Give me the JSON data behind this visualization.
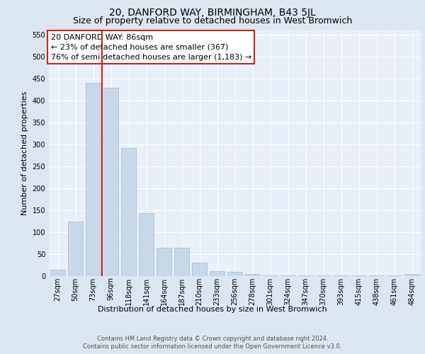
{
  "title_line1": "20, DANFORD WAY, BIRMINGHAM, B43 5JL",
  "title_line2": "Size of property relative to detached houses in West Bromwich",
  "xlabel": "Distribution of detached houses by size in West Bromwich",
  "ylabel": "Number of detached properties",
  "categories": [
    "27sqm",
    "50sqm",
    "73sqm",
    "96sqm",
    "118sqm",
    "141sqm",
    "164sqm",
    "187sqm",
    "210sqm",
    "233sqm",
    "256sqm",
    "278sqm",
    "301sqm",
    "324sqm",
    "347sqm",
    "370sqm",
    "393sqm",
    "415sqm",
    "438sqm",
    "461sqm",
    "484sqm"
  ],
  "values": [
    14,
    124,
    440,
    428,
    292,
    144,
    65,
    65,
    30,
    12,
    9,
    5,
    2,
    2,
    2,
    1,
    1,
    1,
    1,
    1,
    5
  ],
  "bar_color": "#c8d8e8",
  "bar_edge_color": "#a0b8d0",
  "vline_color": "#cc2222",
  "ylim": [
    0,
    560
  ],
  "yticks": [
    0,
    50,
    100,
    150,
    200,
    250,
    300,
    350,
    400,
    450,
    500,
    550
  ],
  "annotation_text": "20 DANFORD WAY: 86sqm\n← 23% of detached houses are smaller (367)\n76% of semi-detached houses are larger (1,183) →",
  "annotation_box_color": "#ffffff",
  "annotation_border_color": "#cc2222",
  "footer_line1": "Contains HM Land Registry data © Crown copyright and database right 2024.",
  "footer_line2": "Contains public sector information licensed under the Open Government Licence v3.0.",
  "bg_color": "#dce6f0",
  "plot_bg_color": "#e8eff8",
  "title1_fontsize": 10,
  "title2_fontsize": 9,
  "ylabel_fontsize": 8,
  "tick_fontsize": 7,
  "annot_fontsize": 8,
  "xlabel_fontsize": 8,
  "footer_fontsize": 6
}
